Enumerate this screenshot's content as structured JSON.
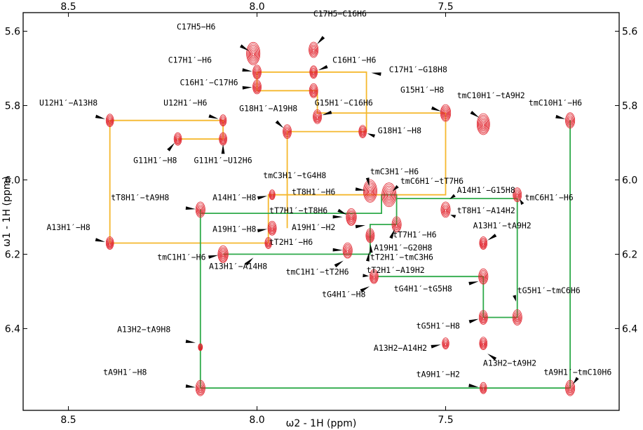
{
  "chart_data": {
    "type": "scatter",
    "subtype": "2D NMR NOESY contour spectrum",
    "xlabel": "ω2 - 1H  (ppm)",
    "ylabel": "ω1 - 1H  (ppm)",
    "xlim": [
      8.62,
      7.04
    ],
    "ylim": [
      5.55,
      6.62
    ],
    "x_ticks": [
      "8.5",
      "8.0",
      "7.5"
    ],
    "x_tick_values": [
      8.5,
      8.0,
      7.5
    ],
    "y_ticks": [
      "5.6",
      "5.8",
      "6.0",
      "6.2",
      "6.4"
    ],
    "y_tick_values": [
      5.6,
      5.8,
      6.0,
      6.2,
      6.4
    ],
    "colors": {
      "contour": "#e0202a",
      "walk_orange": "#f5b82e",
      "walk_green": "#2eaa4a",
      "frame": "#000000"
    },
    "peaks": [
      {
        "x": 8.01,
        "y": 5.66,
        "size": 1.6
      },
      {
        "x": 7.85,
        "y": 5.65,
        "size": 1.1
      },
      {
        "x": 8.0,
        "y": 5.71,
        "size": 1.0
      },
      {
        "x": 7.85,
        "y": 5.71,
        "size": 0.9
      },
      {
        "x": 8.0,
        "y": 5.75,
        "size": 1.0
      },
      {
        "x": 7.85,
        "y": 5.76,
        "size": 1.0
      },
      {
        "x": 8.39,
        "y": 5.84,
        "size": 0.9
      },
      {
        "x": 8.09,
        "y": 5.84,
        "size": 0.8
      },
      {
        "x": 7.84,
        "y": 5.83,
        "size": 1.0
      },
      {
        "x": 7.72,
        "y": 5.87,
        "size": 0.9
      },
      {
        "x": 7.92,
        "y": 5.87,
        "size": 1.0
      },
      {
        "x": 7.5,
        "y": 5.82,
        "size": 1.2
      },
      {
        "x": 7.4,
        "y": 5.85,
        "size": 1.5
      },
      {
        "x": 7.17,
        "y": 5.84,
        "size": 1.1
      },
      {
        "x": 8.21,
        "y": 5.89,
        "size": 0.9
      },
      {
        "x": 8.09,
        "y": 5.89,
        "size": 0.9
      },
      {
        "x": 7.7,
        "y": 6.03,
        "size": 1.6
      },
      {
        "x": 7.65,
        "y": 6.04,
        "size": 1.7
      },
      {
        "x": 7.5,
        "y": 6.08,
        "size": 1.1
      },
      {
        "x": 7.31,
        "y": 6.04,
        "size": 1.0
      },
      {
        "x": 7.96,
        "y": 6.04,
        "size": 0.7
      },
      {
        "x": 8.15,
        "y": 6.08,
        "size": 1.1
      },
      {
        "x": 7.75,
        "y": 6.1,
        "size": 1.2
      },
      {
        "x": 7.96,
        "y": 6.13,
        "size": 1.0
      },
      {
        "x": 7.7,
        "y": 6.15,
        "size": 1.0
      },
      {
        "x": 7.63,
        "y": 6.12,
        "size": 1.1
      },
      {
        "x": 8.39,
        "y": 6.17,
        "size": 0.9
      },
      {
        "x": 7.97,
        "y": 6.17,
        "size": 0.8
      },
      {
        "x": 7.4,
        "y": 6.17,
        "size": 0.9
      },
      {
        "x": 8.09,
        "y": 6.2,
        "size": 1.2
      },
      {
        "x": 7.76,
        "y": 6.19,
        "size": 1.1
      },
      {
        "x": 7.69,
        "y": 6.26,
        "size": 1.0
      },
      {
        "x": 7.4,
        "y": 6.26,
        "size": 1.1
      },
      {
        "x": 7.4,
        "y": 6.37,
        "size": 1.0
      },
      {
        "x": 7.31,
        "y": 6.37,
        "size": 1.1
      },
      {
        "x": 8.15,
        "y": 6.45,
        "size": 0.5
      },
      {
        "x": 7.5,
        "y": 6.44,
        "size": 0.8
      },
      {
        "x": 7.4,
        "y": 6.44,
        "size": 0.9
      },
      {
        "x": 8.15,
        "y": 6.56,
        "size": 1.1
      },
      {
        "x": 7.4,
        "y": 6.56,
        "size": 0.8
      },
      {
        "x": 7.17,
        "y": 6.56,
        "size": 1.1
      }
    ],
    "walks": [
      {
        "color": "orange",
        "points": [
          [
            8.39,
            5.84
          ],
          [
            8.09,
            5.84
          ],
          [
            8.09,
            5.89
          ],
          [
            8.21,
            5.89
          ]
        ]
      },
      {
        "color": "orange",
        "points": [
          [
            8.39,
            5.84
          ],
          [
            8.39,
            6.17
          ],
          [
            7.97,
            6.17
          ],
          [
            7.97,
            6.04
          ],
          [
            7.5,
            6.04
          ],
          [
            7.5,
            5.82
          ],
          [
            7.84,
            5.82
          ],
          [
            7.84,
            5.76
          ],
          [
            8.0,
            5.76
          ],
          [
            8.0,
            5.71
          ],
          [
            7.71,
            5.71
          ],
          [
            7.71,
            5.87
          ],
          [
            7.92,
            5.87
          ],
          [
            7.92,
            6.13
          ]
        ]
      },
      {
        "color": "green",
        "points": [
          [
            8.15,
            6.08
          ],
          [
            8.15,
            6.56
          ],
          [
            7.4,
            6.56
          ]
        ]
      },
      {
        "color": "green",
        "points": [
          [
            8.15,
            6.09
          ],
          [
            7.67,
            6.09
          ],
          [
            7.67,
            6.04
          ],
          [
            7.63,
            6.04
          ],
          [
            7.63,
            6.12
          ],
          [
            7.7,
            6.12
          ],
          [
            7.7,
            6.2
          ],
          [
            8.09,
            6.2
          ]
        ]
      },
      {
        "color": "green",
        "points": [
          [
            7.68,
            6.26
          ],
          [
            7.4,
            6.26
          ],
          [
            7.4,
            6.37
          ],
          [
            7.31,
            6.37
          ],
          [
            7.31,
            6.05
          ],
          [
            7.63,
            6.05
          ]
        ]
      },
      {
        "color": "green",
        "points": [
          [
            7.17,
            5.84
          ],
          [
            7.17,
            6.56
          ],
          [
            7.4,
            6.56
          ]
        ]
      }
    ],
    "annotations": [
      {
        "text": "C17H5−H6",
        "x": 8.11,
        "y": 5.595,
        "anchor": "end",
        "ax": 8.01,
        "ay": 5.66
      },
      {
        "text": "C17H5−C16H6",
        "x": 7.78,
        "y": 5.56,
        "anchor": "middle",
        "ax": 7.85,
        "ay": 5.645
      },
      {
        "text": "C17H1′−H6",
        "x": 8.12,
        "y": 5.685,
        "anchor": "end",
        "ax": 8.0,
        "ay": 5.71
      },
      {
        "text": "C16H1′−H6",
        "x": 7.8,
        "y": 5.685,
        "anchor": "start",
        "ax": 7.85,
        "ay": 5.71
      },
      {
        "text": "C17H1′−G18H8",
        "x": 7.65,
        "y": 5.71,
        "anchor": "start",
        "ax": 7.71,
        "ay": 5.71
      },
      {
        "text": "C16H1′−C17H6",
        "x": 8.05,
        "y": 5.745,
        "anchor": "end",
        "ax": 8.0,
        "ay": 5.75
      },
      {
        "text": "G15H1′−H8",
        "x": 7.62,
        "y": 5.765,
        "anchor": "start",
        "ax": 7.5,
        "ay": 5.82
      },
      {
        "text": "tmC10H1′−tA9H2",
        "x": 7.47,
        "y": 5.78,
        "anchor": "start",
        "ax": 7.4,
        "ay": 5.84
      },
      {
        "text": "tmC10H1′−H6",
        "x": 7.28,
        "y": 5.8,
        "anchor": "start",
        "ax": 7.17,
        "ay": 5.84
      },
      {
        "text": "U12H1′−A13H8",
        "x": 8.5,
        "y": 5.8,
        "anchor": "middle",
        "ax": 8.39,
        "ay": 5.84
      },
      {
        "text": "U12H1′−H6",
        "x": 8.19,
        "y": 5.8,
        "anchor": "middle",
        "ax": 8.09,
        "ay": 5.84
      },
      {
        "text": "G18H1′−A19H8",
        "x": 7.97,
        "y": 5.815,
        "anchor": "middle",
        "ax": 7.92,
        "ay": 5.87
      },
      {
        "text": "G15H1′−C16H6",
        "x": 7.77,
        "y": 5.8,
        "anchor": "middle",
        "ax": 7.84,
        "ay": 5.83
      },
      {
        "text": "G18H1′−H8",
        "x": 7.68,
        "y": 5.875,
        "anchor": "start",
        "ax": 7.72,
        "ay": 5.87
      },
      {
        "text": "G11H1′−H8",
        "x": 8.27,
        "y": 5.955,
        "anchor": "middle",
        "ax": 8.21,
        "ay": 5.89
      },
      {
        "text": "G11H1′−U12H6",
        "x": 8.09,
        "y": 5.955,
        "anchor": "middle",
        "ax": 8.09,
        "ay": 5.89
      },
      {
        "text": "tmC3H1′−H6",
        "x": 7.7,
        "y": 5.985,
        "anchor": "start",
        "ax": 7.7,
        "ay": 6.03
      },
      {
        "text": "tmC3H1′−tG4H8",
        "x": 7.9,
        "y": 5.995,
        "anchor": "middle",
        "ax": 7.7,
        "ay": 6.03
      },
      {
        "text": "tmC6H1′−tT7H6",
        "x": 7.62,
        "y": 6.01,
        "anchor": "start",
        "ax": 7.65,
        "ay": 6.04
      },
      {
        "text": "A14H1′−G15H8",
        "x": 7.47,
        "y": 6.035,
        "anchor": "start",
        "ax": 7.5,
        "ay": 6.06
      },
      {
        "text": "tmC6H1′−H6",
        "x": 7.29,
        "y": 6.055,
        "anchor": "start",
        "ax": 7.31,
        "ay": 6.04
      },
      {
        "text": "tT8H1′−H6",
        "x": 7.85,
        "y": 6.04,
        "anchor": "middle",
        "ax": 7.75,
        "ay": 6.1
      },
      {
        "text": "tT8H1′−tA9H8",
        "x": 8.31,
        "y": 6.055,
        "anchor": "middle",
        "ax": 8.15,
        "ay": 6.08
      },
      {
        "text": "A14H1′−H8",
        "x": 8.06,
        "y": 6.055,
        "anchor": "middle",
        "ax": 7.96,
        "ay": 6.04
      },
      {
        "text": "tT7H1′−tT8H6",
        "x": 7.89,
        "y": 6.09,
        "anchor": "middle",
        "ax": 7.76,
        "ay": 6.1
      },
      {
        "text": "tT8H1′−A14H2",
        "x": 7.47,
        "y": 6.09,
        "anchor": "start",
        "ax": 7.5,
        "ay": 6.09
      },
      {
        "text": "A13H1′−H8",
        "x": 8.5,
        "y": 6.135,
        "anchor": "middle",
        "ax": 8.39,
        "ay": 6.17
      },
      {
        "text": "A19H1′−H8",
        "x": 8.06,
        "y": 6.14,
        "anchor": "middle",
        "ax": 7.96,
        "ay": 6.13
      },
      {
        "text": "A19H1′−H2",
        "x": 7.85,
        "y": 6.135,
        "anchor": "middle",
        "ax": 7.7,
        "ay": 6.12
      },
      {
        "text": "A13H1′−tA9H2",
        "x": 7.35,
        "y": 6.13,
        "anchor": "middle",
        "ax": 7.4,
        "ay": 6.17
      },
      {
        "text": "tT7H1′−H6",
        "x": 7.64,
        "y": 6.155,
        "anchor": "start",
        "ax": 7.63,
        "ay": 6.12
      },
      {
        "text": "tT2H1′−H6",
        "x": 7.91,
        "y": 6.175,
        "anchor": "middle",
        "ax": 7.76,
        "ay": 6.19
      },
      {
        "text": "A19H1′−G20H8",
        "x": 7.69,
        "y": 6.19,
        "anchor": "start",
        "ax": 7.7,
        "ay": 6.16
      },
      {
        "text": "tmC1H1′−H6",
        "x": 8.2,
        "y": 6.215,
        "anchor": "middle",
        "ax": 8.09,
        "ay": 6.2
      },
      {
        "text": "tT2H1′−tmC3H6",
        "x": 7.7,
        "y": 6.215,
        "anchor": "start",
        "ax": 7.7,
        "ay": 6.18
      },
      {
        "text": "A13H1′−A14H8",
        "x": 8.05,
        "y": 6.24,
        "anchor": "middle",
        "ax": 8.0,
        "ay": 6.2
      },
      {
        "text": "tmC1H1′−tT2H6",
        "x": 7.84,
        "y": 6.255,
        "anchor": "middle",
        "ax": 7.76,
        "ay": 6.21
      },
      {
        "text": "tT2H1′−A19H2",
        "x": 7.71,
        "y": 6.25,
        "anchor": "start",
        "ax": 7.69,
        "ay": 6.26
      },
      {
        "text": "tG4H1′−tG5H8",
        "x": 7.56,
        "y": 6.3,
        "anchor": "middle",
        "ax": 7.4,
        "ay": 6.27
      },
      {
        "text": "tG4H1′−H8",
        "x": 7.77,
        "y": 6.315,
        "anchor": "middle",
        "ax": 7.69,
        "ay": 6.28
      },
      {
        "text": "tG5H1′−tmC6H6",
        "x": 7.31,
        "y": 6.305,
        "anchor": "start",
        "ax": 7.31,
        "ay": 6.34
      },
      {
        "text": "tG5H1′−H8",
        "x": 7.52,
        "y": 6.4,
        "anchor": "middle",
        "ax": 7.4,
        "ay": 6.37
      },
      {
        "text": "A13H2−tA9H8",
        "x": 8.3,
        "y": 6.41,
        "anchor": "middle",
        "ax": 8.15,
        "ay": 6.44
      },
      {
        "text": "A13H2−A14H2",
        "x": 7.62,
        "y": 6.46,
        "anchor": "middle",
        "ax": 7.5,
        "ay": 6.44
      },
      {
        "text": "A13H2−tA9H2",
        "x": 7.33,
        "y": 6.5,
        "anchor": "middle",
        "ax": 7.4,
        "ay": 6.46
      },
      {
        "text": "tA9H1′−tmC10H6",
        "x": 7.15,
        "y": 6.525,
        "anchor": "middle",
        "ax": 7.17,
        "ay": 6.56
      },
      {
        "text": "tA9H1′−H8",
        "x": 8.35,
        "y": 6.525,
        "anchor": "middle",
        "ax": 8.15,
        "ay": 6.56
      },
      {
        "text": "tA9H1′−H2",
        "x": 7.52,
        "y": 6.53,
        "anchor": "middle",
        "ax": 7.4,
        "ay": 6.56
      }
    ]
  }
}
